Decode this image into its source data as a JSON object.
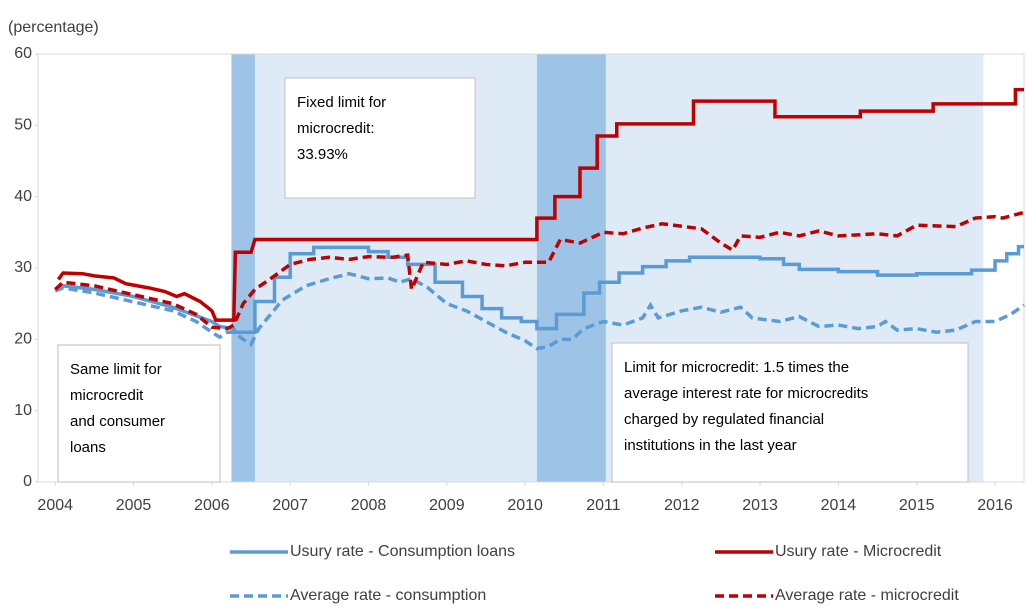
{
  "chart_data": {
    "type": "line",
    "y_label": "(percentage)",
    "xlim": [
      2003.78,
      2016.37
    ],
    "xticks": [
      2004,
      2005,
      2006,
      2007,
      2008,
      2009,
      2010,
      2011,
      2012,
      2013,
      2014,
      2015,
      2016
    ],
    "ylim": [
      0,
      60
    ],
    "yticks": [
      0,
      10,
      20,
      30,
      40,
      50,
      60
    ],
    "shading": [
      {
        "start": 2006.25,
        "end": 2015.85,
        "color": "#deebf7"
      },
      {
        "start": 2006.25,
        "end": 2006.55,
        "color": "#9dc3e6"
      },
      {
        "start": 2010.15,
        "end": 2011.03,
        "color": "#9dc3e6"
      }
    ],
    "series": [
      {
        "name": "Usury rate - Consumption loans",
        "color": "#5b9bd5",
        "dash": false,
        "x": [
          2004.04,
          2004.1,
          2004.5,
          2005.0,
          2005.5,
          2006.0,
          2006.1,
          2006.28,
          2006.3,
          2006.55,
          2006.55,
          2006.8,
          2006.8,
          2007.0,
          2007.0,
          2007.3,
          2007.3,
          2008.0,
          2008.0,
          2008.25,
          2008.25,
          2008.5,
          2008.5,
          2008.85,
          2008.85,
          2009.2,
          2009.2,
          2009.45,
          2009.45,
          2009.7,
          2009.7,
          2009.95,
          2009.95,
          2010.15,
          2010.15,
          2010.4,
          2010.4,
          2010.75,
          2010.75,
          2010.95,
          2010.95,
          2011.2,
          2011.2,
          2011.5,
          2011.5,
          2011.8,
          2011.8,
          2012.1,
          2012.1,
          2013.0,
          2013.0,
          2013.3,
          2013.3,
          2013.5,
          2013.5,
          2014.0,
          2014.0,
          2014.5,
          2014.5,
          2015.0,
          2015.0,
          2015.7,
          2015.7,
          2016.0,
          2016.0,
          2016.15,
          2016.15,
          2016.3,
          2016.3,
          2016.37
        ],
        "values": [
          27.3,
          27.5,
          27.0,
          26.0,
          24.5,
          22.5,
          21.8,
          21.5,
          21.0,
          21.0,
          25.3,
          25.3,
          28.7,
          28.7,
          32.0,
          32.0,
          32.9,
          32.9,
          32.3,
          32.3,
          31.5,
          31.5,
          30.5,
          30.5,
          28.0,
          28.0,
          26.0,
          26.0,
          24.3,
          24.3,
          23.0,
          23.0,
          22.5,
          22.5,
          21.5,
          21.5,
          23.5,
          23.5,
          26.5,
          26.5,
          28.0,
          28.0,
          29.3,
          29.3,
          30.2,
          30.2,
          31.0,
          31.0,
          31.5,
          31.5,
          31.3,
          31.3,
          30.5,
          30.5,
          29.8,
          29.8,
          29.5,
          29.5,
          29.0,
          29.0,
          29.2,
          29.2,
          29.7,
          29.7,
          31.0,
          31.0,
          32.0,
          32.0,
          33.0,
          33.0
        ]
      },
      {
        "name": "Usury rate - Microcredit",
        "color": "#c00000",
        "dash": false,
        "x": [
          2004.04,
          2004.1,
          2004.35,
          2004.5,
          2004.75,
          2004.9,
          2005.2,
          2005.4,
          2005.55,
          2005.65,
          2005.85,
          2006.0,
          2006.05,
          2006.28,
          2006.3,
          2006.5,
          2006.55,
          2010.15,
          2010.15,
          2010.38,
          2010.38,
          2010.7,
          2010.7,
          2010.92,
          2010.92,
          2011.17,
          2011.17,
          2012.15,
          2012.15,
          2013.19,
          2013.19,
          2014.28,
          2014.28,
          2015.21,
          2015.21,
          2016.26,
          2016.26,
          2016.37
        ],
        "values": [
          28.4,
          29.3,
          29.2,
          28.9,
          28.6,
          27.8,
          27.2,
          26.7,
          26.0,
          26.4,
          25.3,
          24.0,
          22.7,
          22.7,
          32.2,
          32.2,
          34.0,
          34.0,
          37.0,
          37.0,
          40.0,
          40.0,
          44.0,
          44.0,
          48.5,
          48.5,
          50.2,
          50.2,
          53.4,
          53.4,
          51.2,
          51.2,
          52.0,
          52.0,
          53.0,
          53.0,
          55.0,
          55.0
        ]
      },
      {
        "name": "Average rate - consumption",
        "color": "#5b9bd5",
        "dash": true,
        "x": [
          2004.0,
          2004.1,
          2004.5,
          2004.9,
          2005.5,
          2005.8,
          2006.0,
          2006.1,
          2006.2,
          2006.28,
          2006.4,
          2006.5,
          2006.6,
          2006.75,
          2006.9,
          2007.2,
          2007.5,
          2007.75,
          2008.0,
          2008.25,
          2008.4,
          2008.55,
          2008.75,
          2009.0,
          2009.25,
          2009.5,
          2009.75,
          2010.0,
          2010.15,
          2010.3,
          2010.45,
          2010.6,
          2010.75,
          2011.0,
          2011.25,
          2011.5,
          2011.6,
          2011.7,
          2012.0,
          2012.25,
          2012.5,
          2012.75,
          2012.9,
          2013.25,
          2013.5,
          2013.75,
          2014.0,
          2014.25,
          2014.5,
          2014.6,
          2014.75,
          2015.0,
          2015.25,
          2015.5,
          2015.75,
          2016.0,
          2016.2,
          2016.37
        ],
        "values": [
          26.8,
          27.2,
          26.5,
          25.5,
          24.0,
          22.5,
          21.0,
          20.3,
          21.0,
          21.0,
          20.0,
          19.3,
          21.5,
          23.5,
          25.5,
          27.5,
          28.5,
          29.2,
          28.5,
          28.6,
          28.0,
          28.5,
          27.3,
          25.0,
          24.0,
          22.5,
          21.0,
          19.8,
          18.7,
          19.0,
          20.0,
          20.0,
          21.5,
          22.5,
          22.0,
          23.0,
          24.8,
          23.0,
          24.0,
          24.5,
          23.8,
          24.5,
          23.0,
          22.5,
          23.2,
          21.8,
          22.0,
          21.5,
          21.8,
          22.5,
          21.3,
          21.5,
          21.0,
          21.3,
          22.5,
          22.5,
          23.5,
          24.8
        ]
      },
      {
        "name": "Average rate - microcredit",
        "color": "#c00000",
        "dash": true,
        "x": [
          2004.0,
          2004.1,
          2004.5,
          2004.9,
          2005.5,
          2005.8,
          2006.0,
          2006.2,
          2006.28,
          2006.4,
          2006.55,
          2006.75,
          2007.0,
          2007.25,
          2007.5,
          2007.75,
          2008.0,
          2008.3,
          2008.5,
          2008.55,
          2008.7,
          2009.0,
          2009.25,
          2009.5,
          2009.75,
          2010.0,
          2010.3,
          2010.45,
          2010.7,
          2011.0,
          2011.25,
          2011.5,
          2011.75,
          2012.25,
          2012.5,
          2012.65,
          2012.75,
          2013.0,
          2013.25,
          2013.5,
          2013.75,
          2014.0,
          2014.5,
          2014.75,
          2015.0,
          2015.5,
          2015.75,
          2016.0,
          2016.1,
          2016.37
        ],
        "values": [
          27.0,
          28.0,
          27.5,
          26.5,
          25.0,
          23.5,
          21.7,
          21.5,
          22.0,
          25.0,
          27.0,
          28.5,
          30.5,
          31.2,
          31.5,
          31.2,
          31.6,
          31.5,
          31.8,
          27.0,
          30.8,
          30.5,
          31.0,
          30.5,
          30.3,
          30.8,
          30.8,
          34.0,
          33.5,
          35.0,
          34.8,
          35.6,
          36.2,
          35.5,
          33.5,
          32.5,
          34.5,
          34.3,
          35.0,
          34.5,
          35.2,
          34.5,
          34.8,
          34.5,
          36.0,
          35.8,
          37.0,
          37.2,
          37.0,
          37.8
        ]
      }
    ],
    "annotations": [
      {
        "lines": [
          "Fixed limit for",
          "microcredit:",
          "33.93%"
        ]
      },
      {
        "lines": [
          "Same limit for",
          "microcredit",
          "and consumer",
          "loans"
        ]
      },
      {
        "lines": [
          "Limit for microcredit: 1.5 times the",
          "average interest rate for microcredits",
          "charged by regulated  financial",
          "institutions in the last year"
        ]
      }
    ]
  }
}
